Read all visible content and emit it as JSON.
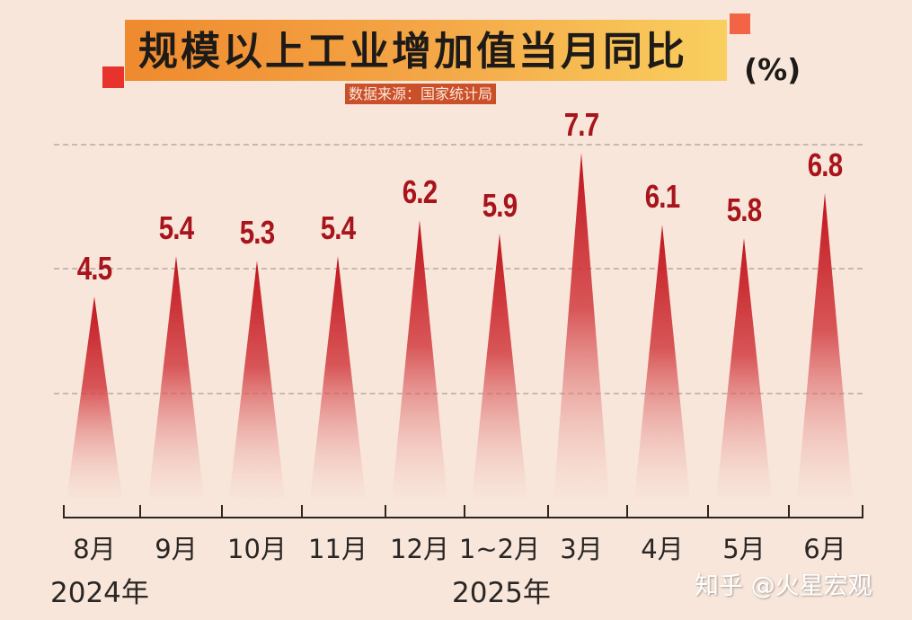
{
  "header": {
    "title": "规模以上工业增加值当月同比",
    "unit": "(%)",
    "source": "数据来源：国家统计局"
  },
  "watermark": "知乎 @火星宏观",
  "x_axis": {
    "categories": [
      "8月",
      "9月",
      "10月",
      "11月",
      "12月",
      "1~2月",
      "3月",
      "4月",
      "5月",
      "6月"
    ],
    "years": [
      "2024年",
      "2025年"
    ]
  },
  "labels": [
    "4.5",
    "5.4",
    "5.3",
    "5.4",
    "6.2",
    "5.9",
    "7.7",
    "6.1",
    "5.8",
    "6.8"
  ],
  "colors": {
    "background": "#f8e6da",
    "spike": "#c0141c",
    "label": "#a8141b",
    "title_gradient_start": "#ef8a2e",
    "title_gradient_end": "#f9cf5f",
    "source_bg": "#c9502a"
  },
  "chart_data": {
    "type": "bar",
    "title": "规模以上工业增加值当月同比",
    "subtitle": "数据来源：国家统计局",
    "xlabel": "",
    "ylabel": "(%)",
    "categories": [
      "2024-8月",
      "2024-9月",
      "2024-10月",
      "2024-11月",
      "2024-12月",
      "2025-1~2月",
      "2025-3月",
      "2025-4月",
      "2025-5月",
      "2025-6月"
    ],
    "values": [
      4.5,
      5.4,
      5.3,
      5.4,
      6.2,
      5.9,
      7.7,
      6.1,
      5.8,
      6.8
    ],
    "series": [
      {
        "name": "规模以上工业增加值当月同比 (%)",
        "values": [
          4.5,
          5.4,
          5.3,
          5.4,
          6.2,
          5.9,
          7.7,
          6.1,
          5.8,
          6.8
        ]
      }
    ],
    "grid": true,
    "legend": "none",
    "annotations": [
      "2024年",
      "2025年"
    ],
    "style": "triangular spike bars with gradient fade"
  }
}
